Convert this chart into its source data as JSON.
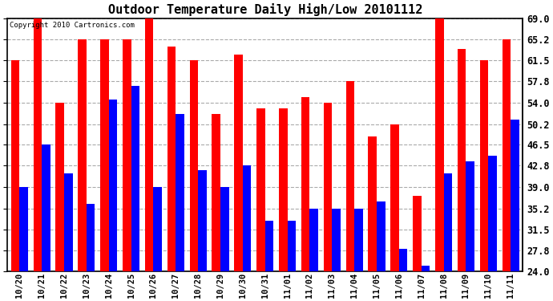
{
  "title": "Outdoor Temperature Daily High/Low 20101112",
  "copyright": "Copyright 2010 Cartronics.com",
  "dates": [
    "10/20",
    "10/21",
    "10/22",
    "10/23",
    "10/24",
    "10/25",
    "10/26",
    "10/27",
    "10/28",
    "10/29",
    "10/30",
    "10/31",
    "11/01",
    "11/02",
    "11/03",
    "11/04",
    "11/05",
    "11/06",
    "11/07",
    "11/08",
    "11/09",
    "11/10",
    "11/11"
  ],
  "highs": [
    61.5,
    69.0,
    54.0,
    65.2,
    65.2,
    65.2,
    69.0,
    64.0,
    61.5,
    52.0,
    62.5,
    53.0,
    53.0,
    55.0,
    54.0,
    57.8,
    48.0,
    50.2,
    37.5,
    69.0,
    63.5,
    61.5,
    65.2
  ],
  "lows": [
    39.0,
    46.5,
    41.5,
    36.0,
    54.5,
    57.0,
    39.0,
    52.0,
    42.0,
    39.0,
    42.8,
    33.0,
    33.0,
    35.2,
    35.2,
    35.2,
    36.5,
    28.0,
    25.0,
    41.5,
    43.5,
    44.5,
    51.0
  ],
  "high_color": "#ff0000",
  "low_color": "#0000ff",
  "background_color": "#ffffff",
  "grid_color": "#aaaaaa",
  "ylabel_right": [
    "69.0",
    "65.2",
    "61.5",
    "57.8",
    "54.0",
    "50.2",
    "46.5",
    "42.8",
    "39.0",
    "35.2",
    "31.5",
    "27.8",
    "24.0"
  ],
  "yticks": [
    69.0,
    65.2,
    61.5,
    57.8,
    54.0,
    50.2,
    46.5,
    42.8,
    39.0,
    35.2,
    31.5,
    27.8,
    24.0
  ],
  "ymin": 24.0,
  "ymax": 69.0,
  "bar_width": 0.38
}
